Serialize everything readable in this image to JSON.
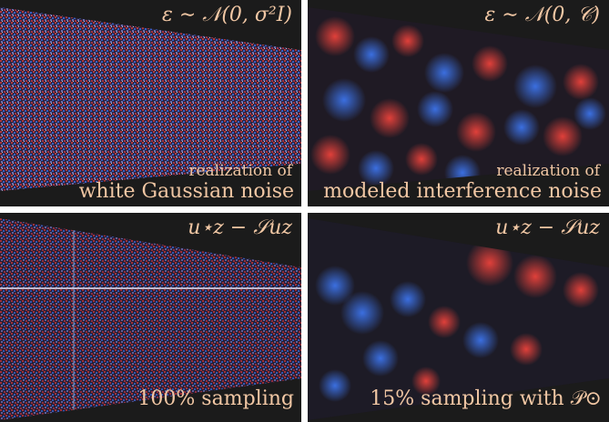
{
  "panels": [
    {
      "formula": "ε ∼ 𝒩(0, σ²I)",
      "caption_line1": "realization of",
      "caption_line2": "white Gaussian noise"
    },
    {
      "formula": "ε ∼ 𝒩(0, 𝒞)",
      "caption_line1": "realization of",
      "caption_line2": "modeled interference noise"
    },
    {
      "formula": "u⋆z − 𝒮uz",
      "caption_line1": "",
      "caption_line2": "100% sampling"
    },
    {
      "formula": "u⋆z − 𝒮uz",
      "caption_line1": "",
      "caption_line2": "15% sampling with 𝒫⊙"
    }
  ],
  "colors": {
    "background": "#1b1b1b",
    "label": "#f1c7a4",
    "positive": "#e0403a",
    "negative": "#3b6fe0"
  }
}
